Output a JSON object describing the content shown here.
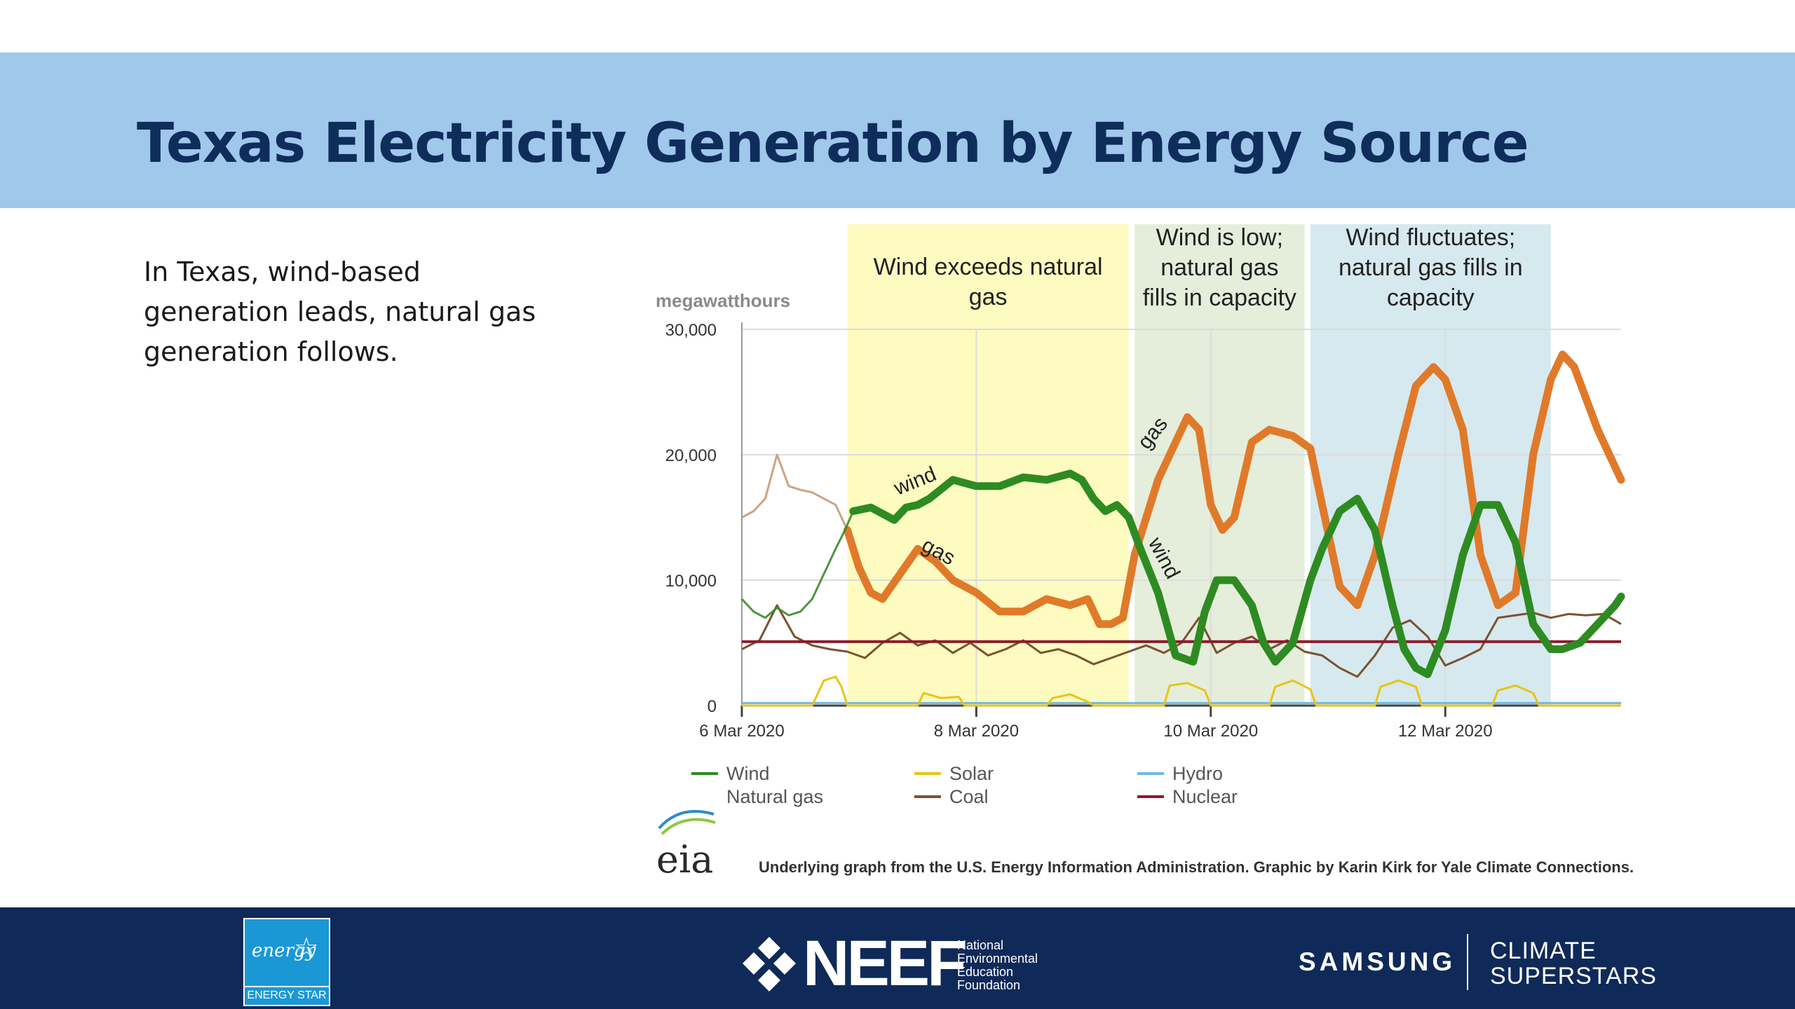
{
  "slide": {
    "title": "Texas Electricity Generation by Energy Source",
    "body_lines": [
      "In Texas, wind-based",
      "generation leads, natural gas",
      "generation follows."
    ]
  },
  "chart_data": {
    "type": "line",
    "ylabel": "megawatthours",
    "ylim": [
      0,
      30000
    ],
    "yticks": [
      0,
      10000,
      20000,
      30000
    ],
    "ytick_labels": [
      "0",
      "10,000",
      "20,000",
      "30,000"
    ],
    "xlim": [
      6.0,
      13.5
    ],
    "xticks": [
      6,
      8,
      10,
      12
    ],
    "xtick_labels": [
      "6 Mar 2020",
      "8 Mar 2020",
      "10 Mar 2020",
      "12 Mar 2020"
    ],
    "grid": true,
    "legend_position": "bottom",
    "colors": {
      "wind": "#2e8b22",
      "natural_gas": "#e07a2a",
      "solar": "#e8c417",
      "coal": "#7a5230",
      "hydro": "#6fb8e8",
      "nuclear": "#8b1a2b"
    },
    "regions": [
      {
        "x0": 6.9,
        "x1": 9.3,
        "color": "#fdfbc0",
        "label": [
          "Wind exceeds natural",
          "gas"
        ]
      },
      {
        "x0": 9.35,
        "x1": 10.8,
        "color": "#e5eedb",
        "label": [
          "Wind is low;",
          "natural gas",
          "fills in capacity"
        ]
      },
      {
        "x0": 10.85,
        "x1": 12.9,
        "color": "#d6e9ee",
        "label": [
          "Wind fluctuates;",
          "natural gas fills in",
          "capacity"
        ]
      }
    ],
    "series": [
      {
        "name": "Wind",
        "key": "wind",
        "emphasis_start": 6.9,
        "x": [
          6.0,
          6.1,
          6.2,
          6.3,
          6.4,
          6.5,
          6.6,
          6.7,
          6.8,
          6.88,
          6.95,
          7.1,
          7.3,
          7.4,
          7.5,
          7.6,
          7.8,
          8.0,
          8.2,
          8.4,
          8.6,
          8.8,
          8.9,
          9.0,
          9.1,
          9.2,
          9.3,
          9.4,
          9.55,
          9.7,
          9.85,
          9.95,
          10.05,
          10.2,
          10.35,
          10.45,
          10.55,
          10.7,
          10.85,
          10.95,
          11.1,
          11.25,
          11.4,
          11.55,
          11.65,
          11.75,
          11.85,
          12.0,
          12.15,
          12.3,
          12.45,
          12.6,
          12.75,
          12.9,
          13.0
        ],
        "y": [
          8500,
          7500,
          7000,
          7800,
          7200,
          7500,
          8500,
          10500,
          12500,
          14000,
          15500,
          15800,
          14800,
          15800,
          16000,
          16500,
          18000,
          17500,
          17500,
          18200,
          18000,
          18500,
          18000,
          16500,
          15500,
          16000,
          15000,
          12500,
          9000,
          4000,
          3500,
          7500,
          10000,
          10000,
          8000,
          5000,
          3500,
          5000,
          10000,
          12500,
          15500,
          16500,
          14000,
          8000,
          4500,
          3000,
          2500,
          6000,
          12000,
          16000,
          16000,
          13000,
          6500,
          4500,
          4500
        ],
        "extra_x": [
          13.15,
          13.3,
          13.45,
          13.5
        ],
        "extra_y": [
          5000,
          6500,
          8000,
          8700
        ]
      },
      {
        "name": "Natural gas",
        "key": "natural_gas",
        "emphasis_start": 6.9,
        "x": [
          6.0,
          6.1,
          6.2,
          6.3,
          6.4,
          6.5,
          6.6,
          6.7,
          6.8,
          6.9,
          7.0,
          7.1,
          7.2,
          7.35,
          7.5,
          7.65,
          7.8,
          8.0,
          8.2,
          8.4,
          8.6,
          8.8,
          8.95,
          9.05,
          9.15,
          9.25,
          9.35,
          9.45,
          9.55,
          9.7,
          9.8,
          9.9,
          10.0,
          10.1,
          10.2,
          10.35,
          10.5,
          10.7,
          10.85,
          10.95,
          11.1,
          11.25,
          11.4,
          11.6,
          11.75,
          11.9,
          12.0,
          12.15,
          12.3,
          12.45,
          12.6,
          12.75,
          12.9,
          13.0,
          13.1,
          13.3,
          13.5
        ],
        "y": [
          15000,
          15500,
          16500,
          20000,
          17500,
          17200,
          17000,
          16500,
          16000,
          14000,
          11000,
          9000,
          8500,
          10500,
          12500,
          11500,
          10000,
          9000,
          7500,
          7500,
          8500,
          8000,
          8500,
          6500,
          6500,
          7000,
          12000,
          15000,
          18000,
          21000,
          23000,
          22000,
          16000,
          14000,
          15000,
          21000,
          22000,
          21500,
          20500,
          16000,
          9500,
          8000,
          12000,
          20000,
          25500,
          27000,
          26000,
          22000,
          12000,
          8000,
          9000,
          20000,
          26000,
          28000,
          27000,
          22000,
          18000
        ]
      },
      {
        "name": "Solar",
        "key": "solar",
        "x": [
          6.0,
          6.6,
          6.7,
          6.8,
          6.85,
          6.9,
          7.2,
          7.5,
          7.55,
          7.7,
          7.85,
          7.9,
          8.0,
          8.3,
          8.6,
          8.65,
          8.8,
          8.95,
          9.0,
          9.3,
          9.6,
          9.65,
          9.8,
          9.95,
          10.0,
          10.3,
          10.5,
          10.55,
          10.7,
          10.85,
          10.9,
          11.3,
          11.4,
          11.45,
          11.6,
          11.75,
          11.8,
          12.2,
          12.4,
          12.45,
          12.6,
          12.75,
          12.8,
          13.5
        ],
        "y": [
          0,
          0,
          2000,
          2300,
          1500,
          0,
          0,
          0,
          1000,
          600,
          700,
          0,
          0,
          0,
          0,
          600,
          900,
          300,
          0,
          0,
          0,
          1600,
          1800,
          1200,
          0,
          0,
          0,
          1500,
          2000,
          1300,
          0,
          0,
          0,
          1500,
          2000,
          1500,
          0,
          0,
          0,
          1200,
          1600,
          1000,
          0,
          0
        ]
      },
      {
        "name": "Coal",
        "key": "coal",
        "x": [
          6.0,
          6.15,
          6.3,
          6.45,
          6.6,
          6.75,
          6.9,
          7.05,
          7.2,
          7.35,
          7.5,
          7.65,
          7.8,
          7.95,
          8.1,
          8.25,
          8.4,
          8.55,
          8.7,
          8.85,
          9.0,
          9.15,
          9.3,
          9.45,
          9.6,
          9.75,
          9.9,
          10.05,
          10.2,
          10.35,
          10.5,
          10.65,
          10.8,
          10.95,
          11.1,
          11.25,
          11.4,
          11.55,
          11.7,
          11.85,
          12.0,
          12.15,
          12.3,
          12.45,
          12.6,
          12.75,
          12.9,
          13.05,
          13.2,
          13.35,
          13.5
        ],
        "y": [
          4500,
          5200,
          8000,
          5500,
          4800,
          4500,
          4300,
          3800,
          5000,
          5800,
          4800,
          5200,
          4200,
          5000,
          4000,
          4500,
          5200,
          4200,
          4500,
          4000,
          3300,
          3800,
          4300,
          4800,
          4200,
          5000,
          7000,
          4200,
          5000,
          5500,
          4500,
          5200,
          4300,
          4000,
          3000,
          2300,
          4000,
          6200,
          6800,
          5500,
          3200,
          3800,
          4500,
          7000,
          7200,
          7400,
          7000,
          7300,
          7200,
          7300,
          6500
        ]
      },
      {
        "name": "Hydro",
        "key": "hydro",
        "x": [
          6.0,
          13.5
        ],
        "y": [
          200,
          200
        ]
      },
      {
        "name": "Nuclear",
        "key": "nuclear",
        "x": [
          6.0,
          13.5
        ],
        "y": [
          5100,
          5100
        ]
      }
    ],
    "annotations": [
      {
        "text": "wind",
        "x": 7.5,
        "y": 17400,
        "rotate": -22
      },
      {
        "text": "gas",
        "x": 7.65,
        "y": 11800,
        "rotate": 28
      },
      {
        "text": "gas",
        "x": 9.55,
        "y": 21400,
        "rotate": -52
      },
      {
        "text": "wind",
        "x": 9.55,
        "y": 11500,
        "rotate": 62
      }
    ],
    "legend": [
      {
        "label": "Wind",
        "key": "wind",
        "col": 0,
        "row": 0
      },
      {
        "label": "Natural gas",
        "key": "natural_gas",
        "col": 0,
        "row": 1
      },
      {
        "label": "Solar",
        "key": "solar",
        "col": 1,
        "row": 0
      },
      {
        "label": "Coal",
        "key": "coal",
        "col": 1,
        "row": 1
      },
      {
        "label": "Hydro",
        "key": "hydro",
        "col": 2,
        "row": 0
      },
      {
        "label": "Nuclear",
        "key": "nuclear",
        "col": 2,
        "row": 1
      }
    ],
    "source_logo_text": "eia",
    "credit": "Underlying graph from the U.S. Energy Information Administration. Graphic by Karin Kirk for Yale Climate Connections."
  },
  "footer": {
    "energy_star_logo_text": "ENERGY STAR",
    "energy_star_script": "energy",
    "neef_logo_text": "NEEF",
    "neef_subtitle_lines": [
      "National",
      "Environmental",
      "Education",
      "Foundation"
    ],
    "samsung_text": "SAMSUNG",
    "climate_superstars_lines": [
      "CLIMATE",
      "SUPERSTARS"
    ]
  }
}
